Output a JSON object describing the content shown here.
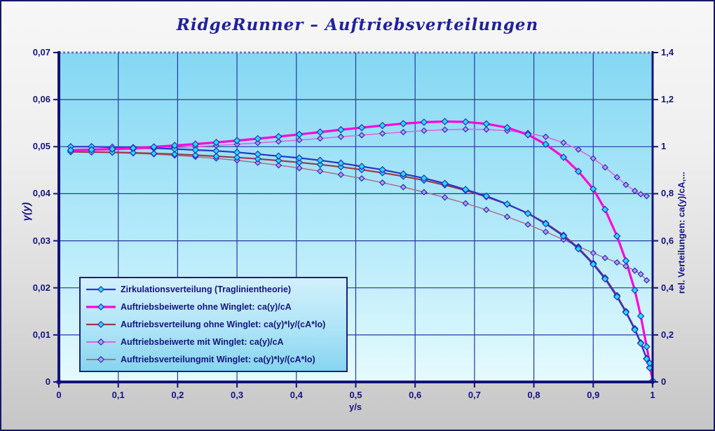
{
  "title": "RidgeRunner – Auftriebsverteilungen",
  "chart_data": {
    "type": "line",
    "title": "RidgeRunner – Auftriebsverteilungen",
    "xlabel": "y/s",
    "ylabel_left": "γ(y)",
    "ylabel_right": "rel. Verteilungen: ca(y)/cA,...",
    "xlim": [
      0,
      1
    ],
    "ylim_left": [
      0,
      0.07
    ],
    "ylim_right": [
      0,
      1.4
    ],
    "grid": true,
    "legend_position": "inside-lower-left",
    "x_ticks": {
      "labels": [
        "0",
        "0,1",
        "0,2",
        "0,3",
        "0,4",
        "0,5",
        "0,6",
        "0,7",
        "0,8",
        "0,9",
        "1"
      ],
      "values": [
        0,
        0.1,
        0.2,
        0.3,
        0.4,
        0.5,
        0.6,
        0.7,
        0.8,
        0.9,
        1
      ]
    },
    "left_ticks": {
      "labels": [
        "0,07",
        "0,06",
        "0,05",
        "0,04",
        "0,03",
        "0,02",
        "0,01",
        "0"
      ],
      "values": [
        0.07,
        0.06,
        0.05,
        0.04,
        0.03,
        0.02,
        0.01,
        0
      ]
    },
    "right_ticks": {
      "labels": [
        "1,4",
        "1,2",
        "1",
        "0,8",
        "0,6",
        "0,4",
        "0,2",
        "0"
      ],
      "values": [
        1.4,
        1.2,
        1,
        0.8,
        0.6,
        0.4,
        0.2,
        0
      ]
    },
    "style": {
      "plot_bg_top": "#84d7f3",
      "plot_bg_mid": "#b4eafa",
      "plot_bg_bottom": "#e6fafe",
      "grid_color": "#2438a0",
      "axis_color": "#12127a",
      "top_border_color": "#7070bf",
      "text_color": "#15157e",
      "cyan_marker_fill": "#1fe0ff",
      "lavender_marker_fill": "#b79cf2",
      "marker_stroke": "#2d2db8"
    },
    "series": [
      {
        "name": "Zirkulationsverteilung (Traglinientheorie)",
        "axis": "left",
        "color": "#2a35c8",
        "marker_fill": "#1fe0ff",
        "line_width": 2.2,
        "marker_size": 4.4,
        "x": [
          0.02,
          0.055,
          0.09,
          0.125,
          0.16,
          0.195,
          0.23,
          0.265,
          0.3,
          0.335,
          0.37,
          0.405,
          0.44,
          0.475,
          0.51,
          0.545,
          0.58,
          0.615,
          0.65,
          0.685,
          0.72,
          0.755,
          0.79,
          0.82,
          0.85,
          0.875,
          0.9,
          0.92,
          0.94,
          0.955,
          0.97,
          0.98,
          0.99,
          0.995,
          1.0
        ],
        "y": [
          0.05,
          0.05,
          0.0499,
          0.0498,
          0.0497,
          0.0495,
          0.0493,
          0.0491,
          0.0488,
          0.0484,
          0.048,
          0.0476,
          0.0471,
          0.0465,
          0.0458,
          0.0451,
          0.0442,
          0.0433,
          0.0422,
          0.0409,
          0.0395,
          0.0378,
          0.0358,
          0.0336,
          0.031,
          0.0283,
          0.025,
          0.0219,
          0.0181,
          0.0148,
          0.0111,
          0.0082,
          0.0049,
          0.003,
          0.0002
        ]
      },
      {
        "name": "Auftriebsbeiwerte ohne Winglet: ca(y)/cA",
        "axis": "right",
        "color": "#fb05d8",
        "marker_fill": "#1fe0ff",
        "line_width": 3.2,
        "marker_size": 4.4,
        "x": [
          0.02,
          0.055,
          0.09,
          0.125,
          0.16,
          0.195,
          0.23,
          0.265,
          0.3,
          0.335,
          0.37,
          0.405,
          0.44,
          0.475,
          0.51,
          0.545,
          0.58,
          0.615,
          0.65,
          0.685,
          0.72,
          0.755,
          0.79,
          0.82,
          0.85,
          0.875,
          0.9,
          0.92,
          0.94,
          0.955,
          0.97,
          0.98,
          0.99,
          0.995,
          1.0
        ],
        "y": [
          0.985,
          0.987,
          0.99,
          0.994,
          0.999,
          1.005,
          1.011,
          1.018,
          1.026,
          1.034,
          1.043,
          1.052,
          1.062,
          1.072,
          1.081,
          1.09,
          1.098,
          1.104,
          1.107,
          1.105,
          1.097,
          1.081,
          1.051,
          1.01,
          0.955,
          0.895,
          0.82,
          0.733,
          0.62,
          0.515,
          0.39,
          0.28,
          0.15,
          0.08,
          0.005
        ]
      },
      {
        "name": "Auftriebsverteilung ohne Winglet: ca(y)*ly/(cA*lo)",
        "axis": "right",
        "color": "#a03a46",
        "marker_fill": "#1fe0ff",
        "line_width": 2.2,
        "marker_size": 4.2,
        "x": [
          0.02,
          0.055,
          0.09,
          0.125,
          0.16,
          0.195,
          0.23,
          0.265,
          0.3,
          0.335,
          0.37,
          0.405,
          0.44,
          0.475,
          0.51,
          0.545,
          0.58,
          0.615,
          0.65,
          0.685,
          0.72,
          0.755,
          0.79,
          0.82,
          0.85,
          0.875,
          0.9,
          0.92,
          0.94,
          0.955,
          0.97,
          0.98,
          0.99,
          0.995,
          1.0
        ],
        "y": [
          0.978,
          0.977,
          0.976,
          0.974,
          0.971,
          0.968,
          0.964,
          0.959,
          0.954,
          0.948,
          0.941,
          0.933,
          0.924,
          0.914,
          0.902,
          0.889,
          0.874,
          0.857,
          0.837,
          0.814,
          0.787,
          0.755,
          0.717,
          0.675,
          0.624,
          0.57,
          0.505,
          0.443,
          0.368,
          0.3,
          0.227,
          0.167,
          0.1,
          0.062,
          0.005
        ]
      },
      {
        "name": "Auftriebsbeiwerte mit Winglet: ca(y)/cA",
        "axis": "right",
        "color": "#e263e0",
        "marker_fill": "#b79cf2",
        "line_width": 1.6,
        "marker_size": 3.8,
        "x": [
          0.02,
          0.055,
          0.09,
          0.125,
          0.16,
          0.195,
          0.23,
          0.265,
          0.3,
          0.335,
          0.37,
          0.405,
          0.44,
          0.475,
          0.51,
          0.545,
          0.58,
          0.615,
          0.65,
          0.685,
          0.72,
          0.755,
          0.79,
          0.82,
          0.85,
          0.875,
          0.9,
          0.92,
          0.94,
          0.955,
          0.97,
          0.98,
          0.99
        ],
        "y": [
          0.983,
          0.984,
          0.986,
          0.989,
          0.992,
          0.996,
          1.0,
          1.005,
          1.01,
          1.016,
          1.022,
          1.028,
          1.035,
          1.042,
          1.049,
          1.056,
          1.062,
          1.068,
          1.072,
          1.074,
          1.073,
          1.068,
          1.058,
          1.042,
          1.017,
          0.988,
          0.95,
          0.912,
          0.87,
          0.838,
          0.812,
          0.798,
          0.79
        ]
      },
      {
        "name": "Auftriebsverteilungmit Winglet: ca(y)*ly/(cA*lo)",
        "axis": "right",
        "color": "#ad6d8c",
        "marker_fill": "#b79cf2",
        "line_width": 1.5,
        "marker_size": 3.8,
        "x": [
          0.02,
          0.055,
          0.09,
          0.125,
          0.16,
          0.195,
          0.23,
          0.265,
          0.3,
          0.335,
          0.37,
          0.405,
          0.44,
          0.475,
          0.51,
          0.545,
          0.58,
          0.615,
          0.65,
          0.685,
          0.72,
          0.755,
          0.79,
          0.82,
          0.85,
          0.875,
          0.9,
          0.92,
          0.94,
          0.955,
          0.97,
          0.98,
          0.99
        ],
        "y": [
          0.978,
          0.977,
          0.975,
          0.972,
          0.968,
          0.963,
          0.957,
          0.95,
          0.942,
          0.932,
          0.921,
          0.909,
          0.896,
          0.881,
          0.865,
          0.847,
          0.828,
          0.807,
          0.784,
          0.759,
          0.732,
          0.702,
          0.669,
          0.638,
          0.605,
          0.576,
          0.548,
          0.527,
          0.508,
          0.492,
          0.473,
          0.458,
          0.432
        ]
      }
    ]
  }
}
